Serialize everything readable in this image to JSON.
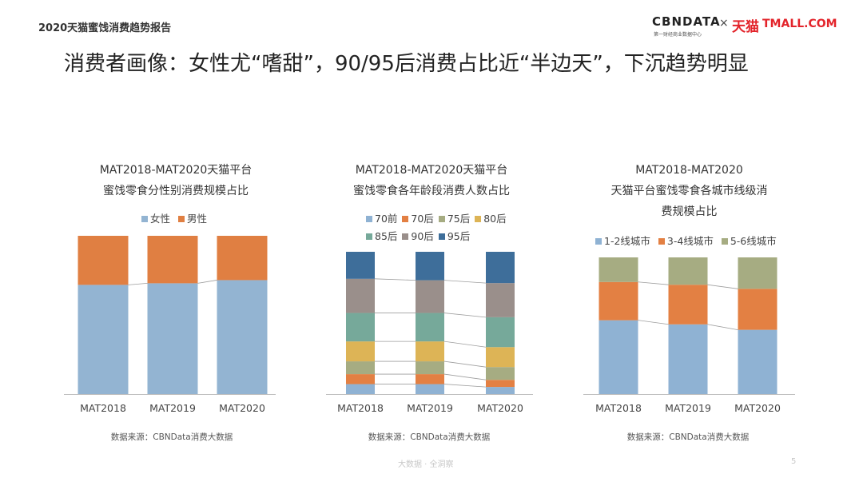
{
  "header": {
    "report_title": "2020天猫蜜饯消费趋势报告",
    "logo_cbn": "CBNDATA",
    "logo_cbn_sub": "第一财经商业数据中心",
    "logo_times": "×",
    "logo_tmall_cn": "天猫",
    "logo_tmall_en": "TMALL.COM"
  },
  "headline": "消费者画像：女性尤“嗜甜”，90/95后消费占比近“半边天”，下沉趋势明显",
  "footer": {
    "watermark": "大数据 · 全洞察",
    "page": "5"
  },
  "colors": {
    "female": "#93b4d2",
    "male": "#e07f42",
    "pre70": "#8fb2d3",
    "post70": "#e38043",
    "post75": "#a6ac82",
    "post80": "#ddb456",
    "post85": "#76a99a",
    "post90": "#9a8f8b",
    "post95": "#3e6e9a",
    "tier12": "#8fb2d3",
    "tier34": "#e38043",
    "tier56": "#a6ac82",
    "connector": "#9e9e9e",
    "baseline": "#bfbfbf"
  },
  "chart_data": [
    {
      "type": "bar",
      "stacked": true,
      "title_lines": [
        "MAT2018-MAT2020天猫平台",
        "蜜饯零食分性别消费规模占比"
      ],
      "categories": [
        "MAT2018",
        "MAT2019",
        "MAT2020"
      ],
      "series": [
        {
          "name": "女性",
          "color_key": "female",
          "values": [
            0.69,
            0.7,
            0.72
          ]
        },
        {
          "name": "男性",
          "color_key": "male",
          "values": [
            0.31,
            0.3,
            0.28
          ]
        }
      ],
      "ylim": [
        0,
        1
      ],
      "legend_position": "top",
      "source": "数据来源：CBNData消费大数据"
    },
    {
      "type": "bar",
      "stacked": true,
      "title_lines": [
        "MAT2018-MAT2020天猫平台",
        "蜜饯零食各年龄段消费人数占比"
      ],
      "categories": [
        "MAT2018",
        "MAT2019",
        "MAT2020"
      ],
      "series": [
        {
          "name": "70前",
          "color_key": "pre70",
          "values": [
            0.07,
            0.07,
            0.05
          ]
        },
        {
          "name": "70后",
          "color_key": "post70",
          "values": [
            0.07,
            0.07,
            0.05
          ]
        },
        {
          "name": "75后",
          "color_key": "post75",
          "values": [
            0.09,
            0.09,
            0.09
          ]
        },
        {
          "name": "80后",
          "color_key": "post80",
          "values": [
            0.14,
            0.14,
            0.14
          ]
        },
        {
          "name": "85后",
          "color_key": "post85",
          "values": [
            0.2,
            0.2,
            0.21
          ]
        },
        {
          "name": "90后",
          "color_key": "post90",
          "values": [
            0.24,
            0.23,
            0.24
          ]
        },
        {
          "name": "95后",
          "color_key": "post95",
          "values": [
            0.19,
            0.2,
            0.22
          ]
        }
      ],
      "ylim": [
        0,
        1
      ],
      "legend_position": "top",
      "source": "数据来源：CBNData消费大数据"
    },
    {
      "type": "bar",
      "stacked": true,
      "title_lines": [
        "MAT2018-MAT2020",
        "天猫平台蜜饯零食各城市线级消",
        "费规模占比"
      ],
      "categories": [
        "MAT2018",
        "MAT2019",
        "MAT2020"
      ],
      "series": [
        {
          "name": "1-2线城市",
          "color_key": "tier12",
          "values": [
            0.54,
            0.51,
            0.47
          ]
        },
        {
          "name": "3-4线城市",
          "color_key": "tier34",
          "values": [
            0.28,
            0.29,
            0.3
          ]
        },
        {
          "name": "5-6线城市",
          "color_key": "tier56",
          "values": [
            0.18,
            0.2,
            0.23
          ]
        }
      ],
      "ylim": [
        0,
        1
      ],
      "legend_position": "top",
      "source": "数据来源：CBNData消费大数据"
    }
  ]
}
